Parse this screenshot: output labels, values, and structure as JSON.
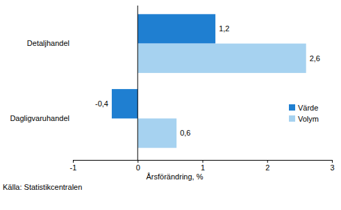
{
  "chart_data": {
    "type": "bar",
    "orientation": "horizontal",
    "categories": [
      "Detaljhandel",
      "Dagligvaruhandel"
    ],
    "series": [
      {
        "name": "Värde",
        "color": "#1f7fd1",
        "values": [
          1.2,
          -0.4
        ],
        "value_labels": [
          "1,2",
          "-0,4"
        ]
      },
      {
        "name": "Volym",
        "color": "#a6d2f0",
        "values": [
          2.6,
          0.6
        ],
        "value_labels": [
          "2,6",
          "0,6"
        ]
      }
    ],
    "xlim": [
      -1,
      3
    ],
    "xticks": [
      -1,
      0,
      1,
      2,
      3
    ],
    "x_label": "Årsförändring, %",
    "source": "Källa: Statistikcentralen",
    "grid": false,
    "legend": "lower right",
    "data_labels": true
  }
}
